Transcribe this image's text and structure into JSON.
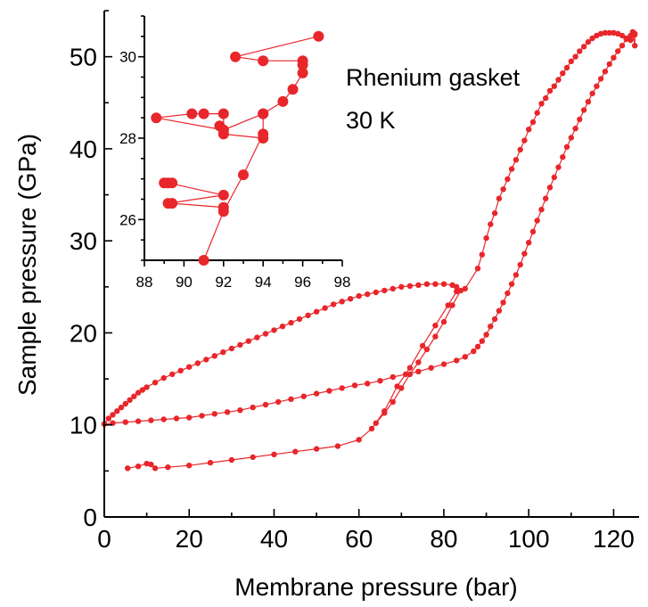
{
  "chart_data": {
    "type": "scatter",
    "xlabel": "Membrane pressure (bar)",
    "ylabel": "Sample pressure (GPa)",
    "xlim": [
      0,
      126
    ],
    "ylim": [
      0,
      55
    ],
    "xticks": [
      0,
      20,
      40,
      60,
      80,
      100,
      120
    ],
    "yticks": [
      0,
      10,
      20,
      30,
      40,
      50
    ],
    "annotations": [
      "Rhenium gasket",
      "30 K"
    ],
    "color": "#e8262b",
    "series": [
      {
        "points": [
          [
            5.5,
            5.3
          ],
          [
            8,
            5.5
          ],
          [
            10,
            5.8
          ],
          [
            11,
            5.7
          ],
          [
            12,
            5.3
          ],
          [
            15,
            5.4
          ],
          [
            20,
            5.6
          ],
          [
            25,
            5.9
          ],
          [
            30,
            6.2
          ],
          [
            35,
            6.5
          ],
          [
            40,
            6.8
          ],
          [
            45,
            7.1
          ],
          [
            50,
            7.4
          ],
          [
            55,
            7.7
          ],
          [
            60,
            8.4
          ],
          [
            63,
            9.6
          ],
          [
            66,
            11.5
          ],
          [
            69,
            14.2
          ],
          [
            72,
            16.2
          ],
          [
            75,
            18.6
          ],
          [
            78,
            20.8
          ],
          [
            81,
            23.0
          ],
          [
            83,
            24.5
          ],
          [
            85,
            24.8
          ],
          [
            88,
            27.0
          ],
          [
            89,
            28.5
          ],
          [
            90,
            30.3
          ],
          [
            91,
            31.8
          ],
          [
            92,
            33.0
          ],
          [
            93,
            34.6
          ],
          [
            94,
            35.6
          ],
          [
            95,
            36.7
          ],
          [
            96,
            37.8
          ],
          [
            97,
            38.8
          ],
          [
            98,
            39.9
          ],
          [
            99,
            40.9
          ],
          [
            100,
            42.1
          ],
          [
            101,
            42.9
          ],
          [
            102,
            43.9
          ],
          [
            103,
            44.9
          ],
          [
            104,
            45.5
          ],
          [
            105,
            46.3
          ],
          [
            106,
            46.8
          ],
          [
            107,
            47.5
          ],
          [
            108,
            48.2
          ],
          [
            109,
            48.8
          ],
          [
            110,
            49.5
          ],
          [
            111,
            50.0
          ],
          [
            112,
            50.6
          ],
          [
            113,
            51.1
          ],
          [
            114,
            51.6
          ],
          [
            115,
            52.0
          ],
          [
            116,
            52.3
          ],
          [
            117,
            52.5
          ],
          [
            118,
            52.6
          ],
          [
            119,
            52.6
          ],
          [
            120,
            52.6
          ],
          [
            121,
            52.5
          ],
          [
            122,
            52.3
          ],
          [
            123,
            52.0
          ],
          [
            124,
            51.8
          ],
          [
            125,
            52.5
          ],
          [
            125,
            51.2
          ],
          [
            124.5,
            52.7
          ]
        ]
      },
      {
        "points": [
          [
            125,
            52.4
          ],
          [
            124,
            52.3
          ],
          [
            123,
            51.9
          ],
          [
            122,
            51.2
          ],
          [
            121,
            50.6
          ],
          [
            120,
            49.9
          ],
          [
            119,
            49.2
          ],
          [
            118,
            48.4
          ],
          [
            117,
            47.6
          ],
          [
            116,
            46.8
          ],
          [
            115,
            46.0
          ],
          [
            114,
            45.1
          ],
          [
            113,
            44.2
          ],
          [
            112,
            43.2
          ],
          [
            111,
            42.2
          ],
          [
            110,
            41.2
          ],
          [
            109,
            40.2
          ],
          [
            108,
            39.1
          ],
          [
            107,
            38.0
          ],
          [
            106,
            36.9
          ],
          [
            105,
            35.8
          ],
          [
            104,
            34.6
          ],
          [
            103,
            33.4
          ],
          [
            102,
            32.2
          ],
          [
            101,
            31.0
          ],
          [
            100,
            29.8
          ],
          [
            99,
            28.6
          ],
          [
            98,
            27.4
          ],
          [
            97,
            26.3
          ],
          [
            96,
            25.3
          ],
          [
            95,
            24.3
          ],
          [
            94,
            23.3
          ],
          [
            93,
            22.4
          ],
          [
            92,
            21.5
          ],
          [
            91,
            20.7
          ],
          [
            90,
            19.8
          ],
          [
            89,
            19.1
          ],
          [
            88,
            18.5
          ],
          [
            87,
            18.0
          ],
          [
            85,
            17.4
          ],
          [
            83,
            17.0
          ],
          [
            80,
            16.6
          ],
          [
            77,
            16.2
          ],
          [
            74,
            15.8
          ],
          [
            71,
            15.5
          ],
          [
            68,
            15.2
          ],
          [
            65,
            14.8
          ],
          [
            62,
            14.5
          ],
          [
            59,
            14.3
          ],
          [
            56,
            14.0
          ],
          [
            53,
            13.7
          ],
          [
            50,
            13.4
          ],
          [
            47,
            13.1
          ],
          [
            44,
            12.8
          ],
          [
            41,
            12.5
          ],
          [
            38,
            12.2
          ],
          [
            35,
            11.9
          ],
          [
            32,
            11.6
          ],
          [
            29,
            11.4
          ],
          [
            26,
            11.2
          ],
          [
            23,
            11.0
          ],
          [
            20,
            10.8
          ],
          [
            17,
            10.7
          ],
          [
            14,
            10.6
          ],
          [
            11,
            10.5
          ],
          [
            8,
            10.4
          ],
          [
            5,
            10.3
          ],
          [
            2,
            10.2
          ],
          [
            0,
            10.1
          ]
        ]
      },
      {
        "points": [
          [
            0,
            10.1
          ],
          [
            1,
            10.7
          ],
          [
            2,
            11.1
          ],
          [
            3,
            11.5
          ],
          [
            4,
            11.9
          ],
          [
            5,
            12.3
          ],
          [
            6,
            12.7
          ],
          [
            7,
            13.1
          ],
          [
            8,
            13.5
          ],
          [
            9,
            13.8
          ],
          [
            10,
            14.1
          ],
          [
            12,
            14.6
          ],
          [
            14,
            15.1
          ],
          [
            16,
            15.5
          ],
          [
            18,
            15.9
          ],
          [
            20,
            16.3
          ],
          [
            22,
            16.7
          ],
          [
            24,
            17.1
          ],
          [
            26,
            17.5
          ],
          [
            28,
            17.9
          ],
          [
            30,
            18.3
          ],
          [
            32,
            18.7
          ],
          [
            34,
            19.1
          ],
          [
            36,
            19.5
          ],
          [
            38,
            19.9
          ],
          [
            40,
            20.3
          ],
          [
            42,
            20.7
          ],
          [
            44,
            21.1
          ],
          [
            46,
            21.5
          ],
          [
            48,
            21.9
          ],
          [
            50,
            22.3
          ],
          [
            52,
            22.7
          ],
          [
            54,
            23.1
          ],
          [
            56,
            23.4
          ],
          [
            58,
            23.7
          ],
          [
            60,
            24.0
          ],
          [
            62,
            24.2
          ],
          [
            64,
            24.4
          ],
          [
            66,
            24.6
          ],
          [
            68,
            24.8
          ],
          [
            70,
            25.0
          ],
          [
            72,
            25.1
          ],
          [
            74,
            25.2
          ],
          [
            76,
            25.3
          ],
          [
            78,
            25.3
          ],
          [
            80,
            25.3
          ],
          [
            82,
            25.2
          ],
          [
            83,
            25.0
          ],
          [
            84,
            24.6
          ],
          [
            82,
            23.0
          ],
          [
            80,
            21.2
          ],
          [
            78,
            19.6
          ],
          [
            76,
            18.2
          ],
          [
            74,
            16.8
          ],
          [
            72,
            15.5
          ],
          [
            70,
            14.0
          ],
          [
            68,
            12.5
          ],
          [
            66,
            11.3
          ],
          [
            64,
            10.2
          ]
        ]
      }
    ],
    "inset": {
      "xlim": [
        88,
        98
      ],
      "ylim": [
        25,
        31
      ],
      "xticks": [
        88,
        90,
        92,
        94,
        96,
        98
      ],
      "yticks": [
        26,
        28,
        30
      ],
      "series": [
        {
          "points": [
            [
              91,
              25
            ],
            [
              92,
              26.2
            ],
            [
              93,
              27.1
            ],
            [
              94,
              28.1
            ],
            [
              94,
              28.6
            ],
            [
              95,
              28.9
            ],
            [
              95.5,
              29.2
            ],
            [
              96,
              29.6
            ],
            [
              96,
              29.8
            ],
            [
              96,
              29.9
            ],
            [
              94,
              29.9
            ],
            [
              92.6,
              30.0
            ],
            [
              96.8,
              30.5
            ]
          ]
        },
        {
          "points": [
            [
              94,
              28.0
            ],
            [
              92,
              28.1
            ],
            [
              91.8,
              28.3
            ],
            [
              92,
              28.2
            ],
            [
              92,
              28.6
            ],
            [
              91,
              28.6
            ],
            [
              90.4,
              28.6
            ],
            [
              88.6,
              28.5
            ],
            [
              92,
              28.2
            ],
            [
              94,
              28.6
            ]
          ]
        },
        {
          "points": [
            [
              92,
              26.3
            ],
            [
              89.4,
              26.4
            ],
            [
              89.2,
              26.4
            ],
            [
              92,
              26.6
            ],
            [
              89.2,
              26.9
            ],
            [
              89,
              26.9
            ],
            [
              89.4,
              26.9
            ]
          ]
        }
      ]
    }
  }
}
